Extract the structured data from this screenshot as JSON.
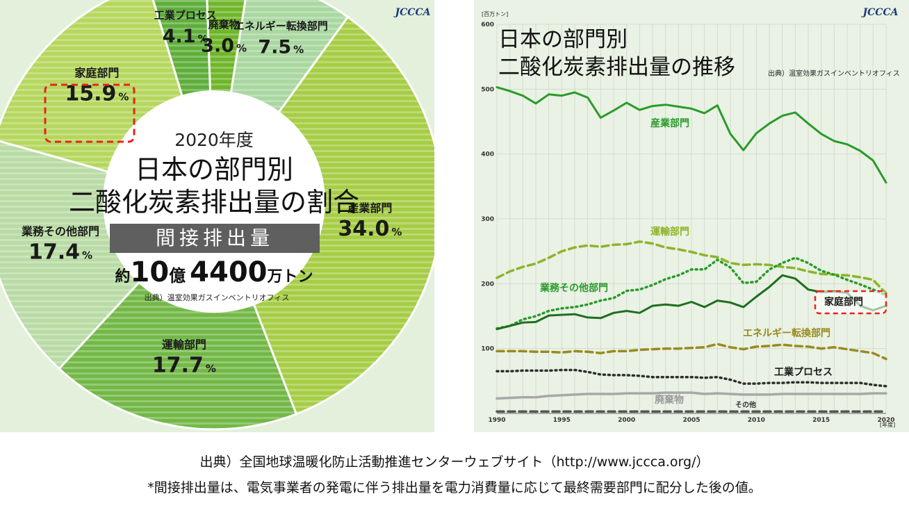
{
  "chart_data": [
    {
      "type": "pie",
      "style": "donut",
      "year_label": "2020年度",
      "title_line1": "日本の部門別",
      "title_line2": "二酸化炭素排出量の割合",
      "subtitle_band": "間接排出量",
      "total": {
        "prefix": "約",
        "num1": "10",
        "unit1": "億",
        "num2": "4400",
        "unit2": "万トン"
      },
      "source": "出典）温室効果ガスインベントリオフィス",
      "logo": "JCCCA",
      "highlight_color": "#e8231c",
      "slices": [
        {
          "label": "廃棄物",
          "value": 3.0,
          "display": "3.0",
          "color": "#6fb62a"
        },
        {
          "label": "エネルギー転換部門",
          "value": 7.5,
          "display": "7.5",
          "color": "#a9d7a0"
        },
        {
          "label": "産業部門",
          "value": 34.0,
          "display": "34.0",
          "color": "#a6cd45"
        },
        {
          "label": "運輸部門",
          "value": 17.7,
          "display": "17.7",
          "color": "#73b847"
        },
        {
          "label": "業務その他部門",
          "value": 17.4,
          "display": "17.4",
          "color": "#b9dba5"
        },
        {
          "label": "家庭部門",
          "value": 15.9,
          "display": "15.9",
          "color": "#b6d75e",
          "highlight": true
        },
        {
          "label": "工業プロセス",
          "value": 4.1,
          "display": "4.1",
          "color": "#5fae3b"
        }
      ],
      "percent_sign": "%"
    },
    {
      "type": "line",
      "title_line1": "日本の部門別",
      "title_line2": "二酸化炭素排出量の推移",
      "source": "出典）温室効果ガスインベントリオフィス",
      "logo": "JCCCA",
      "y_unit_label": "[百万トン]",
      "x_unit_label": "[年度]",
      "ylim": [
        0,
        600
      ],
      "yticks": [
        0,
        100,
        200,
        300,
        400,
        500,
        600
      ],
      "ytick_labels": [
        "",
        "100",
        "200",
        "300",
        "400",
        "500",
        "600"
      ],
      "xlim": [
        1990,
        2020
      ],
      "xticks": [
        1990,
        1995,
        2000,
        2005,
        2010,
        2015,
        2020
      ],
      "grid": true,
      "x": [
        1990,
        1991,
        1992,
        1993,
        1994,
        1995,
        1996,
        1997,
        1998,
        1999,
        2000,
        2001,
        2002,
        2003,
        2004,
        2005,
        2006,
        2007,
        2008,
        2009,
        2010,
        2011,
        2012,
        2013,
        2014,
        2015,
        2016,
        2017,
        2018,
        2019,
        2020
      ],
      "series": [
        {
          "name": "産業部門",
          "color": "#2a9a2a",
          "dash": "solid",
          "values": [
            503,
            497,
            490,
            478,
            492,
            490,
            495,
            487,
            456,
            467,
            479,
            468,
            474,
            476,
            473,
            470,
            463,
            475,
            431,
            406,
            432,
            447,
            459,
            464,
            447,
            431,
            420,
            415,
            405,
            390,
            356
          ]
        },
        {
          "name": "運輸部門",
          "color": "#8db32a",
          "dash": "dashed",
          "values": [
            209,
            219,
            226,
            231,
            240,
            250,
            256,
            259,
            257,
            260,
            261,
            265,
            262,
            256,
            253,
            249,
            244,
            241,
            232,
            229,
            230,
            229,
            226,
            224,
            219,
            215,
            214,
            213,
            210,
            206,
            185
          ]
        },
        {
          "name": "業務その他部門",
          "color": "#2a9a2a",
          "dash": "dotted",
          "values": [
            131,
            135,
            145,
            150,
            158,
            162,
            164,
            168,
            174,
            178,
            189,
            191,
            198,
            207,
            213,
            222,
            222,
            237,
            225,
            201,
            203,
            222,
            232,
            240,
            232,
            220,
            214,
            206,
            199,
            191,
            182
          ]
        },
        {
          "name": "家庭部門",
          "color": "#1f6e1f",
          "dash": "solid",
          "highlight": true,
          "values": [
            130,
            135,
            140,
            141,
            151,
            152,
            153,
            148,
            147,
            155,
            158,
            155,
            166,
            168,
            166,
            172,
            164,
            174,
            171,
            164,
            180,
            195,
            213,
            208,
            191,
            187,
            188,
            186,
            166,
            159,
            166
          ]
        },
        {
          "name": "エネルギー転換部門",
          "color": "#9a8a1e",
          "dash": "dashed",
          "values": [
            96,
            96,
            96,
            95,
            95,
            94,
            96,
            95,
            93,
            96,
            96,
            98,
            99,
            100,
            100,
            101,
            102,
            107,
            102,
            99,
            103,
            104,
            106,
            104,
            103,
            100,
            102,
            99,
            96,
            93,
            84
          ]
        },
        {
          "name": "工業プロセス",
          "color": "#2e2e2e",
          "dash": "dotted",
          "values": [
            65,
            65,
            66,
            66,
            66,
            67,
            67,
            64,
            60,
            59,
            59,
            58,
            56,
            56,
            56,
            56,
            55,
            56,
            52,
            46,
            46,
            47,
            47,
            48,
            48,
            47,
            47,
            47,
            47,
            44,
            42
          ]
        },
        {
          "name": "廃棄物",
          "color": "#a8a8a8",
          "dash": "solid",
          "values": [
            23,
            24,
            25,
            25,
            27,
            28,
            29,
            30,
            30,
            30,
            31,
            31,
            31,
            32,
            32,
            32,
            30,
            31,
            30,
            29,
            29,
            29,
            30,
            30,
            30,
            30,
            30,
            30,
            30,
            31,
            31
          ]
        },
        {
          "name": "その他",
          "color": "#555555",
          "dash": "dashed",
          "values": [
            3,
            3,
            3,
            3,
            3,
            3,
            3,
            3,
            3,
            3,
            3,
            3,
            3,
            3,
            3,
            3,
            3,
            3,
            3,
            3,
            3,
            3,
            3,
            3,
            3,
            3,
            3,
            3,
            3,
            3,
            3
          ]
        }
      ]
    }
  ],
  "footer": {
    "line1": "出典）全国地球温暖化防止活動推進センターウェブサイト（http://www.jccca.org/）",
    "line2": "*間接排出量は、電気事業者の発電に伴う排出量を電力消費量に応じて最終需要部門に配分した後の値。"
  }
}
